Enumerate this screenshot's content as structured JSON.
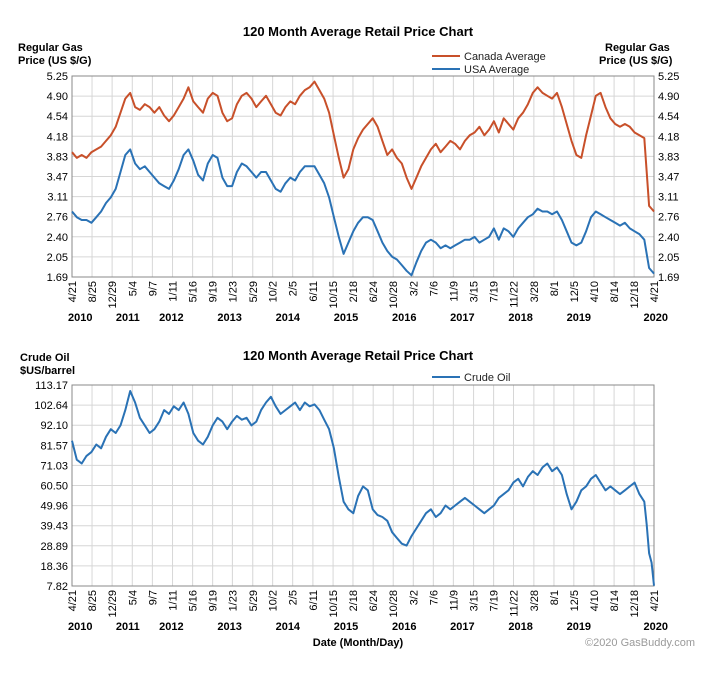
{
  "copyright": "©2020 GasBuddy.com",
  "chart_data": [
    {
      "type": "line",
      "title": "120 Month Average Retail Price Chart",
      "ylabel_left": [
        "Regular Gas",
        "Price (US $/G)"
      ],
      "ylabel_right": [
        "Regular Gas",
        "Price (US $/G)"
      ],
      "yticks": [
        "5.25",
        "4.90",
        "4.54",
        "4.18",
        "3.83",
        "3.47",
        "3.11",
        "2.76",
        "2.40",
        "2.05",
        "1.69"
      ],
      "ylim": [
        1.69,
        5.25
      ],
      "xlim": [
        0,
        120
      ],
      "xticks": [
        {
          "label": "4/21",
          "t": 0
        },
        {
          "label": "8/25",
          "t": 4.13
        },
        {
          "label": "12/29",
          "t": 8.27
        },
        {
          "label": "5/4",
          "t": 12.43
        },
        {
          "label": "9/7",
          "t": 16.57
        },
        {
          "label": "1/11",
          "t": 20.73
        },
        {
          "label": "5/16",
          "t": 24.87
        },
        {
          "label": "9/19",
          "t": 29.0
        },
        {
          "label": "1/23",
          "t": 33.07
        },
        {
          "label": "5/29",
          "t": 37.27
        },
        {
          "label": "10/2",
          "t": 41.37
        },
        {
          "label": "2/5",
          "t": 45.5
        },
        {
          "label": "6/11",
          "t": 49.67
        },
        {
          "label": "10/15",
          "t": 53.83
        },
        {
          "label": "2/18",
          "t": 57.93
        },
        {
          "label": "6/24",
          "t": 62.1
        },
        {
          "label": "10/28",
          "t": 66.23
        },
        {
          "label": "3/2",
          "t": 70.37
        },
        {
          "label": "7/6",
          "t": 74.5
        },
        {
          "label": "11/9",
          "t": 78.63
        },
        {
          "label": "3/15",
          "t": 82.8
        },
        {
          "label": "7/19",
          "t": 86.93
        },
        {
          "label": "11/22",
          "t": 91.03
        },
        {
          "label": "3/28",
          "t": 95.23
        },
        {
          "label": "8/1",
          "t": 99.37
        },
        {
          "label": "12/5",
          "t": 103.47
        },
        {
          "label": "4/10",
          "t": 107.63
        },
        {
          "label": "8/14",
          "t": 111.77
        },
        {
          "label": "12/18",
          "t": 115.9
        },
        {
          "label": "4/21",
          "t": 120
        }
      ],
      "years": [
        {
          "label": "2010",
          "t": 0
        },
        {
          "label": "2011",
          "t": 11.5
        },
        {
          "label": "2012",
          "t": 20.5
        },
        {
          "label": "2013",
          "t": 32.5
        },
        {
          "label": "2014",
          "t": 44.5
        },
        {
          "label": "2015",
          "t": 56.5
        },
        {
          "label": "2016",
          "t": 68.5
        },
        {
          "label": "2017",
          "t": 80.5
        },
        {
          "label": "2018",
          "t": 92.5
        },
        {
          "label": "2019",
          "t": 104.5
        },
        {
          "label": "2020",
          "t": 120
        }
      ],
      "legend": "top-right",
      "series": [
        {
          "name": "Canada Average",
          "color": "#c8502a",
          "x": [
            0,
            1,
            2,
            3,
            4,
            5,
            6,
            7,
            8,
            9,
            10,
            11,
            12,
            13,
            14,
            15,
            16,
            17,
            18,
            19,
            20,
            21,
            22,
            23,
            24,
            25,
            26,
            27,
            28,
            29,
            30,
            31,
            32,
            33,
            34,
            35,
            36,
            37,
            38,
            39,
            40,
            41,
            42,
            43,
            44,
            45,
            46,
            47,
            48,
            49,
            50,
            51,
            52,
            53,
            54,
            55,
            56,
            57,
            58,
            59,
            60,
            61,
            62,
            63,
            64,
            65,
            66,
            67,
            68,
            69,
            70,
            71,
            72,
            73,
            74,
            75,
            76,
            77,
            78,
            79,
            80,
            81,
            82,
            83,
            84,
            85,
            86,
            87,
            88,
            89,
            90,
            91,
            92,
            93,
            94,
            95,
            96,
            97,
            98,
            99,
            100,
            101,
            102,
            103,
            104,
            105,
            106,
            107,
            108,
            109,
            110,
            111,
            112,
            113,
            114,
            115,
            116,
            117,
            118,
            118.5,
            119,
            120
          ],
          "values": [
            3.9,
            3.8,
            3.85,
            3.8,
            3.9,
            3.95,
            4.0,
            4.1,
            4.2,
            4.35,
            4.6,
            4.85,
            4.95,
            4.7,
            4.65,
            4.75,
            4.7,
            4.6,
            4.7,
            4.55,
            4.45,
            4.55,
            4.7,
            4.85,
            5.05,
            4.8,
            4.7,
            4.6,
            4.85,
            4.95,
            4.9,
            4.6,
            4.45,
            4.5,
            4.75,
            4.9,
            4.95,
            4.85,
            4.7,
            4.8,
            4.9,
            4.75,
            4.6,
            4.55,
            4.7,
            4.8,
            4.75,
            4.9,
            5.0,
            5.05,
            5.15,
            5.0,
            4.85,
            4.6,
            4.2,
            3.8,
            3.45,
            3.6,
            3.95,
            4.15,
            4.3,
            4.4,
            4.5,
            4.35,
            4.1,
            3.85,
            3.95,
            3.8,
            3.7,
            3.45,
            3.25,
            3.45,
            3.65,
            3.8,
            3.95,
            4.05,
            3.9,
            4.0,
            4.1,
            4.05,
            3.95,
            4.1,
            4.2,
            4.25,
            4.35,
            4.2,
            4.3,
            4.45,
            4.25,
            4.5,
            4.4,
            4.3,
            4.5,
            4.6,
            4.75,
            4.95,
            5.05,
            4.95,
            4.9,
            4.85,
            4.95,
            4.7,
            4.4,
            4.1,
            3.85,
            3.8,
            4.2,
            4.55,
            4.9,
            4.95,
            4.7,
            4.5,
            4.4,
            4.35,
            4.4,
            4.35,
            4.25,
            4.2,
            4.15,
            3.55,
            2.95,
            2.85
          ]
        },
        {
          "name": "USA Average",
          "color": "#2a72b5",
          "x": [
            0,
            1,
            2,
            3,
            4,
            5,
            6,
            7,
            8,
            9,
            10,
            11,
            12,
            13,
            14,
            15,
            16,
            17,
            18,
            19,
            20,
            21,
            22,
            23,
            24,
            25,
            26,
            27,
            28,
            29,
            30,
            31,
            32,
            33,
            34,
            35,
            36,
            37,
            38,
            39,
            40,
            41,
            42,
            43,
            44,
            45,
            46,
            47,
            48,
            49,
            50,
            51,
            52,
            53,
            54,
            55,
            56,
            57,
            58,
            59,
            60,
            61,
            62,
            63,
            64,
            65,
            66,
            67,
            68,
            69,
            70,
            71,
            72,
            73,
            74,
            75,
            76,
            77,
            78,
            79,
            80,
            81,
            82,
            83,
            84,
            85,
            86,
            87,
            88,
            89,
            90,
            91,
            92,
            93,
            94,
            95,
            96,
            97,
            98,
            99,
            100,
            101,
            102,
            103,
            104,
            105,
            106,
            107,
            108,
            109,
            110,
            111,
            112,
            113,
            114,
            115,
            116,
            117,
            118,
            118.5,
            119,
            120
          ],
          "values": [
            2.85,
            2.75,
            2.7,
            2.7,
            2.65,
            2.75,
            2.85,
            3.0,
            3.1,
            3.25,
            3.55,
            3.85,
            3.95,
            3.7,
            3.6,
            3.65,
            3.55,
            3.45,
            3.35,
            3.3,
            3.25,
            3.4,
            3.6,
            3.85,
            3.95,
            3.75,
            3.5,
            3.4,
            3.7,
            3.85,
            3.8,
            3.45,
            3.3,
            3.3,
            3.55,
            3.7,
            3.65,
            3.55,
            3.45,
            3.55,
            3.55,
            3.4,
            3.25,
            3.2,
            3.35,
            3.45,
            3.4,
            3.55,
            3.65,
            3.65,
            3.65,
            3.5,
            3.35,
            3.1,
            2.75,
            2.4,
            2.1,
            2.3,
            2.5,
            2.65,
            2.75,
            2.75,
            2.7,
            2.5,
            2.3,
            2.15,
            2.05,
            2.0,
            1.9,
            1.8,
            1.72,
            1.95,
            2.15,
            2.3,
            2.35,
            2.3,
            2.2,
            2.25,
            2.2,
            2.25,
            2.3,
            2.35,
            2.35,
            2.4,
            2.3,
            2.35,
            2.4,
            2.55,
            2.35,
            2.55,
            2.5,
            2.4,
            2.55,
            2.65,
            2.75,
            2.8,
            2.9,
            2.85,
            2.85,
            2.8,
            2.85,
            2.7,
            2.5,
            2.3,
            2.25,
            2.3,
            2.5,
            2.75,
            2.85,
            2.8,
            2.75,
            2.7,
            2.65,
            2.6,
            2.65,
            2.55,
            2.5,
            2.45,
            2.35,
            2.1,
            1.85,
            1.75
          ]
        }
      ]
    },
    {
      "type": "line",
      "title": "120 Month Average Retail Price Chart",
      "ylabel_left": [
        "Crude Oil",
        "$US/barrel"
      ],
      "xlabel": "Date (Month/Day)",
      "yticks": [
        "113.17",
        "102.64",
        "92.10",
        "81.57",
        "71.03",
        "60.50",
        "49.96",
        "39.43",
        "28.89",
        "18.36",
        "7.82"
      ],
      "ylim": [
        7.82,
        113.17
      ],
      "xlim": [
        0,
        120
      ],
      "legend": "top-right",
      "series": [
        {
          "name": "Crude Oil",
          "color": "#2a72b5",
          "x": [
            0,
            1,
            2,
            3,
            4,
            5,
            6,
            7,
            8,
            9,
            10,
            11,
            12,
            13,
            14,
            15,
            16,
            17,
            18,
            19,
            20,
            21,
            22,
            23,
            24,
            25,
            26,
            27,
            28,
            29,
            30,
            31,
            32,
            33,
            34,
            35,
            36,
            37,
            38,
            39,
            40,
            41,
            42,
            43,
            44,
            45,
            46,
            47,
            48,
            49,
            50,
            51,
            52,
            53,
            54,
            55,
            56,
            57,
            58,
            59,
            60,
            61,
            62,
            63,
            64,
            65,
            66,
            67,
            68,
            69,
            70,
            71,
            72,
            73,
            74,
            75,
            76,
            77,
            78,
            79,
            80,
            81,
            82,
            83,
            84,
            85,
            86,
            87,
            88,
            89,
            90,
            91,
            92,
            93,
            94,
            95,
            96,
            97,
            98,
            99,
            100,
            101,
            102,
            103,
            104,
            105,
            106,
            107,
            108,
            109,
            110,
            111,
            112,
            113,
            114,
            115,
            116,
            117,
            118,
            118.5,
            119,
            119.5,
            120
          ],
          "values": [
            84,
            74,
            72,
            76,
            78,
            82,
            80,
            86,
            90,
            88,
            92,
            100,
            110,
            104,
            96,
            92,
            88,
            90,
            94,
            100,
            98,
            102,
            100,
            104,
            98,
            88,
            84,
            82,
            86,
            92,
            96,
            94,
            90,
            94,
            97,
            95,
            96,
            92,
            94,
            100,
            104,
            107,
            102,
            98,
            100,
            102,
            104,
            100,
            104,
            102,
            103,
            100,
            95,
            90,
            80,
            65,
            52,
            48,
            46,
            55,
            60,
            58,
            48,
            45,
            44,
            42,
            36,
            33,
            30,
            29,
            34,
            38,
            42,
            46,
            48,
            44,
            46,
            50,
            48,
            50,
            52,
            54,
            52,
            50,
            48,
            46,
            48,
            50,
            54,
            56,
            58,
            62,
            64,
            60,
            65,
            68,
            66,
            70,
            72,
            68,
            70,
            66,
            56,
            48,
            52,
            58,
            60,
            64,
            66,
            62,
            58,
            60,
            58,
            56,
            58,
            60,
            62,
            56,
            52,
            40,
            25,
            20,
            8
          ]
        }
      ]
    }
  ]
}
